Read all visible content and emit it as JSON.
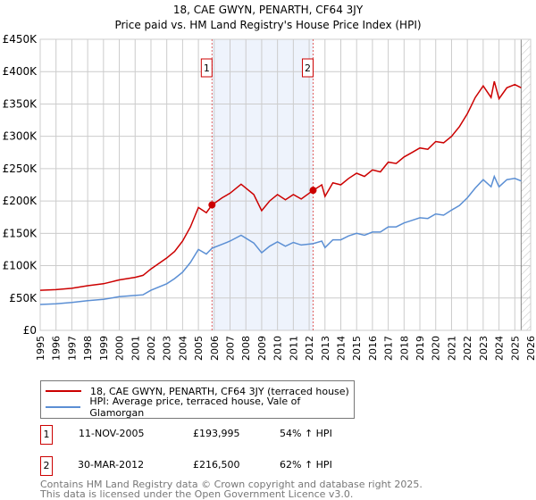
{
  "title": "18, CAE GWYN, PENARTH, CF64 3JY",
  "subtitle": "Price paid vs. HM Land Registry's House Price Index (HPI)",
  "colors": {
    "property": "#cc0000",
    "hpi": "#5b8fd4",
    "shade": "#eef3fc",
    "grid": "#cccccc"
  },
  "chart_data": {
    "type": "line",
    "xlim": [
      1995,
      2026
    ],
    "ylim": [
      0,
      450000
    ],
    "yticks": [
      0,
      50000,
      100000,
      150000,
      200000,
      250000,
      300000,
      350000,
      400000,
      450000
    ],
    "ytick_labels": [
      "£0",
      "£50K",
      "£100K",
      "£150K",
      "£200K",
      "£250K",
      "£300K",
      "£350K",
      "£400K",
      "£450K"
    ],
    "xticks": [
      "1995",
      "1996",
      "1997",
      "1998",
      "1999",
      "2000",
      "2001",
      "2002",
      "2003",
      "2004",
      "2005",
      "2006",
      "2007",
      "2008",
      "2009",
      "2010",
      "2011",
      "2012",
      "2013",
      "2014",
      "2015",
      "2016",
      "2017",
      "2018",
      "2019",
      "2020",
      "2021",
      "2022",
      "2023",
      "2024",
      "2025",
      "2026"
    ],
    "grid": true,
    "shaded_range": [
      2005.86,
      2012.25
    ],
    "hatched_from": 2025.4,
    "series": [
      {
        "name": "18, CAE GWYN, PENARTH, CF64 3JY (terraced house)",
        "color": "#cc0000",
        "x": [
          1995,
          1996,
          1997,
          1998,
          1999,
          2000,
          2001,
          2001.5,
          2002,
          2003,
          2003.5,
          2004,
          2004.5,
          2005,
          2005.5,
          2005.86,
          2006.5,
          2007,
          2007.7,
          2008.5,
          2009,
          2009.5,
          2010,
          2010.5,
          2011,
          2011.5,
          2012.25,
          2012.8,
          2013,
          2013.5,
          2014,
          2014.5,
          2015,
          2015.5,
          2016,
          2016.5,
          2017,
          2017.5,
          2018,
          2018.5,
          2019,
          2019.5,
          2020,
          2020.5,
          2021,
          2021.5,
          2022,
          2022.5,
          2023,
          2023.5,
          2023.7,
          2024,
          2024.5,
          2025,
          2025.4
        ],
        "y": [
          62000,
          63000,
          65000,
          69000,
          72000,
          78000,
          82000,
          85000,
          95000,
          112000,
          122000,
          138000,
          160000,
          190000,
          182000,
          193995,
          205000,
          212000,
          226000,
          210000,
          185000,
          200000,
          210000,
          202000,
          210000,
          203000,
          216500,
          225000,
          207000,
          228000,
          225000,
          235000,
          243000,
          238000,
          248000,
          245000,
          260000,
          258000,
          268000,
          275000,
          282000,
          280000,
          292000,
          290000,
          300000,
          315000,
          335000,
          360000,
          378000,
          360000,
          385000,
          358000,
          375000,
          380000,
          375000
        ]
      },
      {
        "name": "HPI: Average price, terraced house, Vale of Glamorgan",
        "color": "#5b8fd4",
        "x": [
          1995,
          1996,
          1997,
          1998,
          1999,
          2000,
          2001,
          2001.5,
          2002,
          2003,
          2003.5,
          2004,
          2004.5,
          2005,
          2005.5,
          2005.86,
          2006.5,
          2007,
          2007.7,
          2008.5,
          2009,
          2009.5,
          2010,
          2010.5,
          2011,
          2011.5,
          2012.25,
          2012.8,
          2013,
          2013.5,
          2014,
          2014.5,
          2015,
          2015.5,
          2016,
          2016.5,
          2017,
          2017.5,
          2018,
          2018.5,
          2019,
          2019.5,
          2020,
          2020.5,
          2021,
          2021.5,
          2022,
          2022.5,
          2023,
          2023.5,
          2023.7,
          2024,
          2024.5,
          2025,
          2025.4
        ],
        "y": [
          40000,
          41000,
          43000,
          46000,
          48000,
          52000,
          54000,
          55000,
          62000,
          72000,
          80000,
          90000,
          105000,
          125000,
          118000,
          127000,
          133000,
          138000,
          147000,
          135000,
          120000,
          130000,
          137000,
          130000,
          136000,
          132000,
          134000,
          138000,
          128000,
          140000,
          140000,
          146000,
          150000,
          147000,
          152000,
          152000,
          160000,
          160000,
          166000,
          170000,
          174000,
          173000,
          180000,
          178000,
          186000,
          193000,
          205000,
          220000,
          233000,
          222000,
          238000,
          222000,
          233000,
          235000,
          231000
        ]
      }
    ],
    "markers": [
      {
        "label": "1",
        "x": 2005.86,
        "y": 193995
      },
      {
        "label": "2",
        "x": 2012.25,
        "y": 216500
      }
    ]
  },
  "legend": {
    "property": "18, CAE GWYN, PENARTH, CF64 3JY (terraced house)",
    "hpi": "HPI: Average price, terraced house, Vale of Glamorgan"
  },
  "sales": [
    {
      "num": "1",
      "date": "11-NOV-2005",
      "price": "£193,995",
      "delta": "54% ↑ HPI"
    },
    {
      "num": "2",
      "date": "30-MAR-2012",
      "price": "£216,500",
      "delta": "62% ↑ HPI"
    }
  ],
  "footer": {
    "line1": "Contains HM Land Registry data © Crown copyright and database right 2025.",
    "line2": "This data is licensed under the Open Government Licence v3.0."
  }
}
